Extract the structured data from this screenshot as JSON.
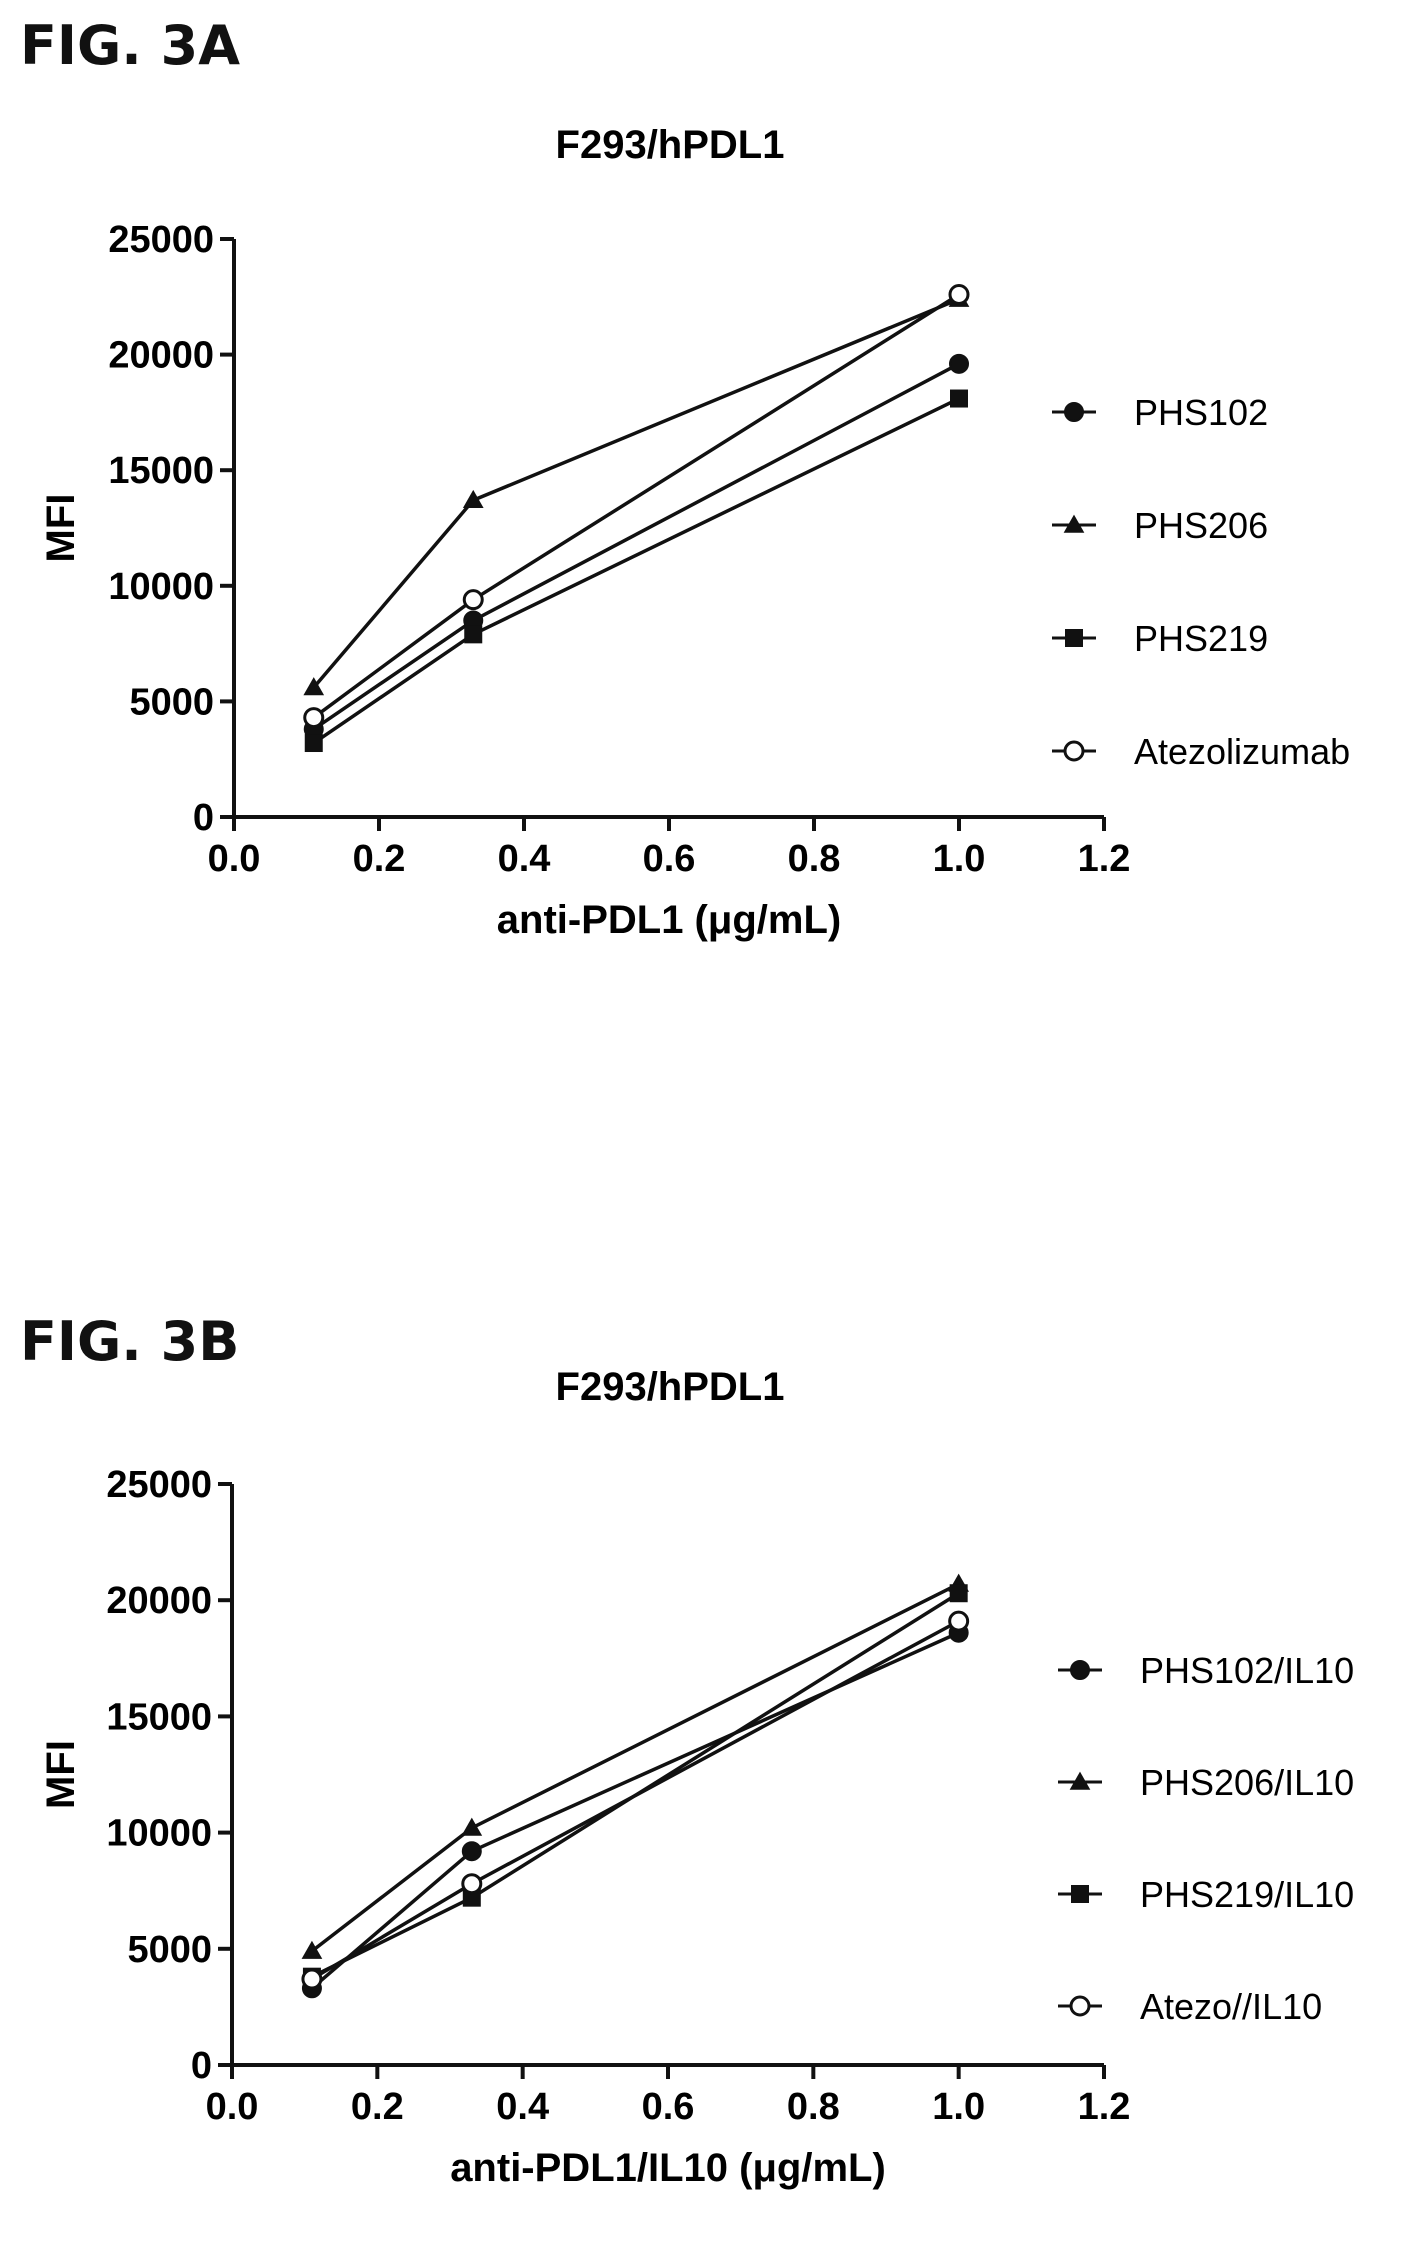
{
  "figures": [
    {
      "label": "FIG. 3A"
    },
    {
      "label": "FIG. 3B"
    }
  ],
  "chart_data": [
    {
      "type": "line",
      "title": "F293/hPDL1",
      "xlabel": "anti-PDL1 (μg/mL)",
      "ylabel": "MFI",
      "xlim": [
        0.0,
        1.2
      ],
      "ylim": [
        0,
        25000
      ],
      "xticks": [
        "0.0",
        "0.2",
        "0.4",
        "0.6",
        "0.8",
        "1.0",
        "1.2"
      ],
      "yticks": [
        "0",
        "5000",
        "10000",
        "15000",
        "20000",
        "25000"
      ],
      "x": [
        0.11,
        0.33,
        1.0
      ],
      "legend_position": "right",
      "series": [
        {
          "name": "PHS102",
          "marker": "filled-circle",
          "values": [
            3800,
            8500,
            19600
          ]
        },
        {
          "name": "PHS206",
          "marker": "filled-triangle",
          "values": [
            5600,
            13700,
            22400
          ]
        },
        {
          "name": "PHS219",
          "marker": "filled-square",
          "values": [
            3200,
            7900,
            18100
          ]
        },
        {
          "name": "Atezolizumab",
          "marker": "open-circle",
          "values": [
            4300,
            9400,
            22600
          ]
        }
      ]
    },
    {
      "type": "line",
      "title": "F293/hPDL1",
      "xlabel": "anti-PDL1/IL10 (μg/mL)",
      "ylabel": "MFI",
      "xlim": [
        0.0,
        1.2
      ],
      "ylim": [
        0,
        25000
      ],
      "xticks": [
        "0.0",
        "0.2",
        "0.4",
        "0.6",
        "0.8",
        "1.0",
        "1.2"
      ],
      "yticks": [
        "0",
        "5000",
        "10000",
        "15000",
        "20000",
        "25000"
      ],
      "x": [
        0.11,
        0.33,
        1.0
      ],
      "legend_position": "right",
      "series": [
        {
          "name": "PHS102/IL10",
          "marker": "filled-circle",
          "values": [
            3300,
            9200,
            18600
          ]
        },
        {
          "name": "PHS206/IL10",
          "marker": "filled-triangle",
          "values": [
            4900,
            10200,
            20700
          ]
        },
        {
          "name": "PHS219/IL10",
          "marker": "filled-square",
          "values": [
            3800,
            7200,
            20300
          ]
        },
        {
          "name": "Atezo//IL10",
          "marker": "open-circle",
          "values": [
            3700,
            7800,
            19100
          ]
        }
      ]
    }
  ]
}
